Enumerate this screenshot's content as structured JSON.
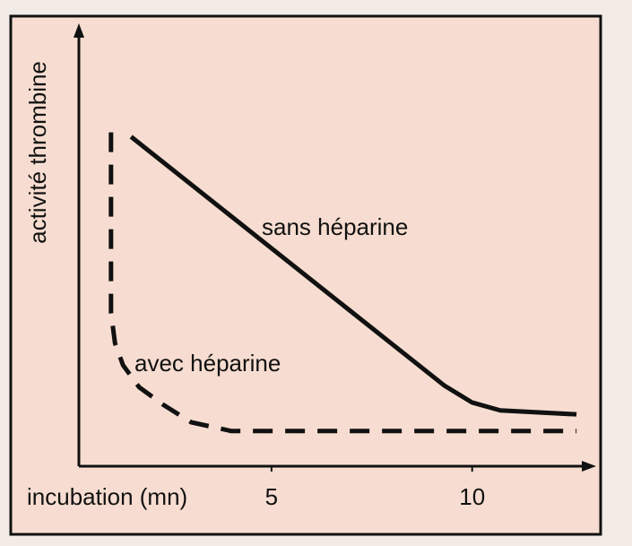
{
  "chart_data": {
    "type": "line",
    "x_label": "incubation (mn)",
    "y_label": "activité thrombine",
    "xlim": [
      0.2,
      13
    ],
    "xticks": [
      5,
      10
    ],
    "ylim": [
      0,
      100
    ],
    "series": [
      {
        "name": "sans héparine",
        "color": "#111111",
        "style": "solid",
        "x": [
          1.5,
          9.3,
          10,
          10.7,
          12.6
        ],
        "values": [
          75,
          18.4,
          14.5,
          12.7,
          11.8
        ]
      },
      {
        "name": "avec héparine",
        "color": "#111111",
        "style": "dashed",
        "x": [
          1,
          1,
          1.1,
          1.3,
          1.7,
          2.3,
          3,
          4,
          12.6
        ],
        "values": [
          76,
          35,
          28,
          23,
          18,
          14,
          10,
          8,
          8
        ]
      }
    ]
  }
}
